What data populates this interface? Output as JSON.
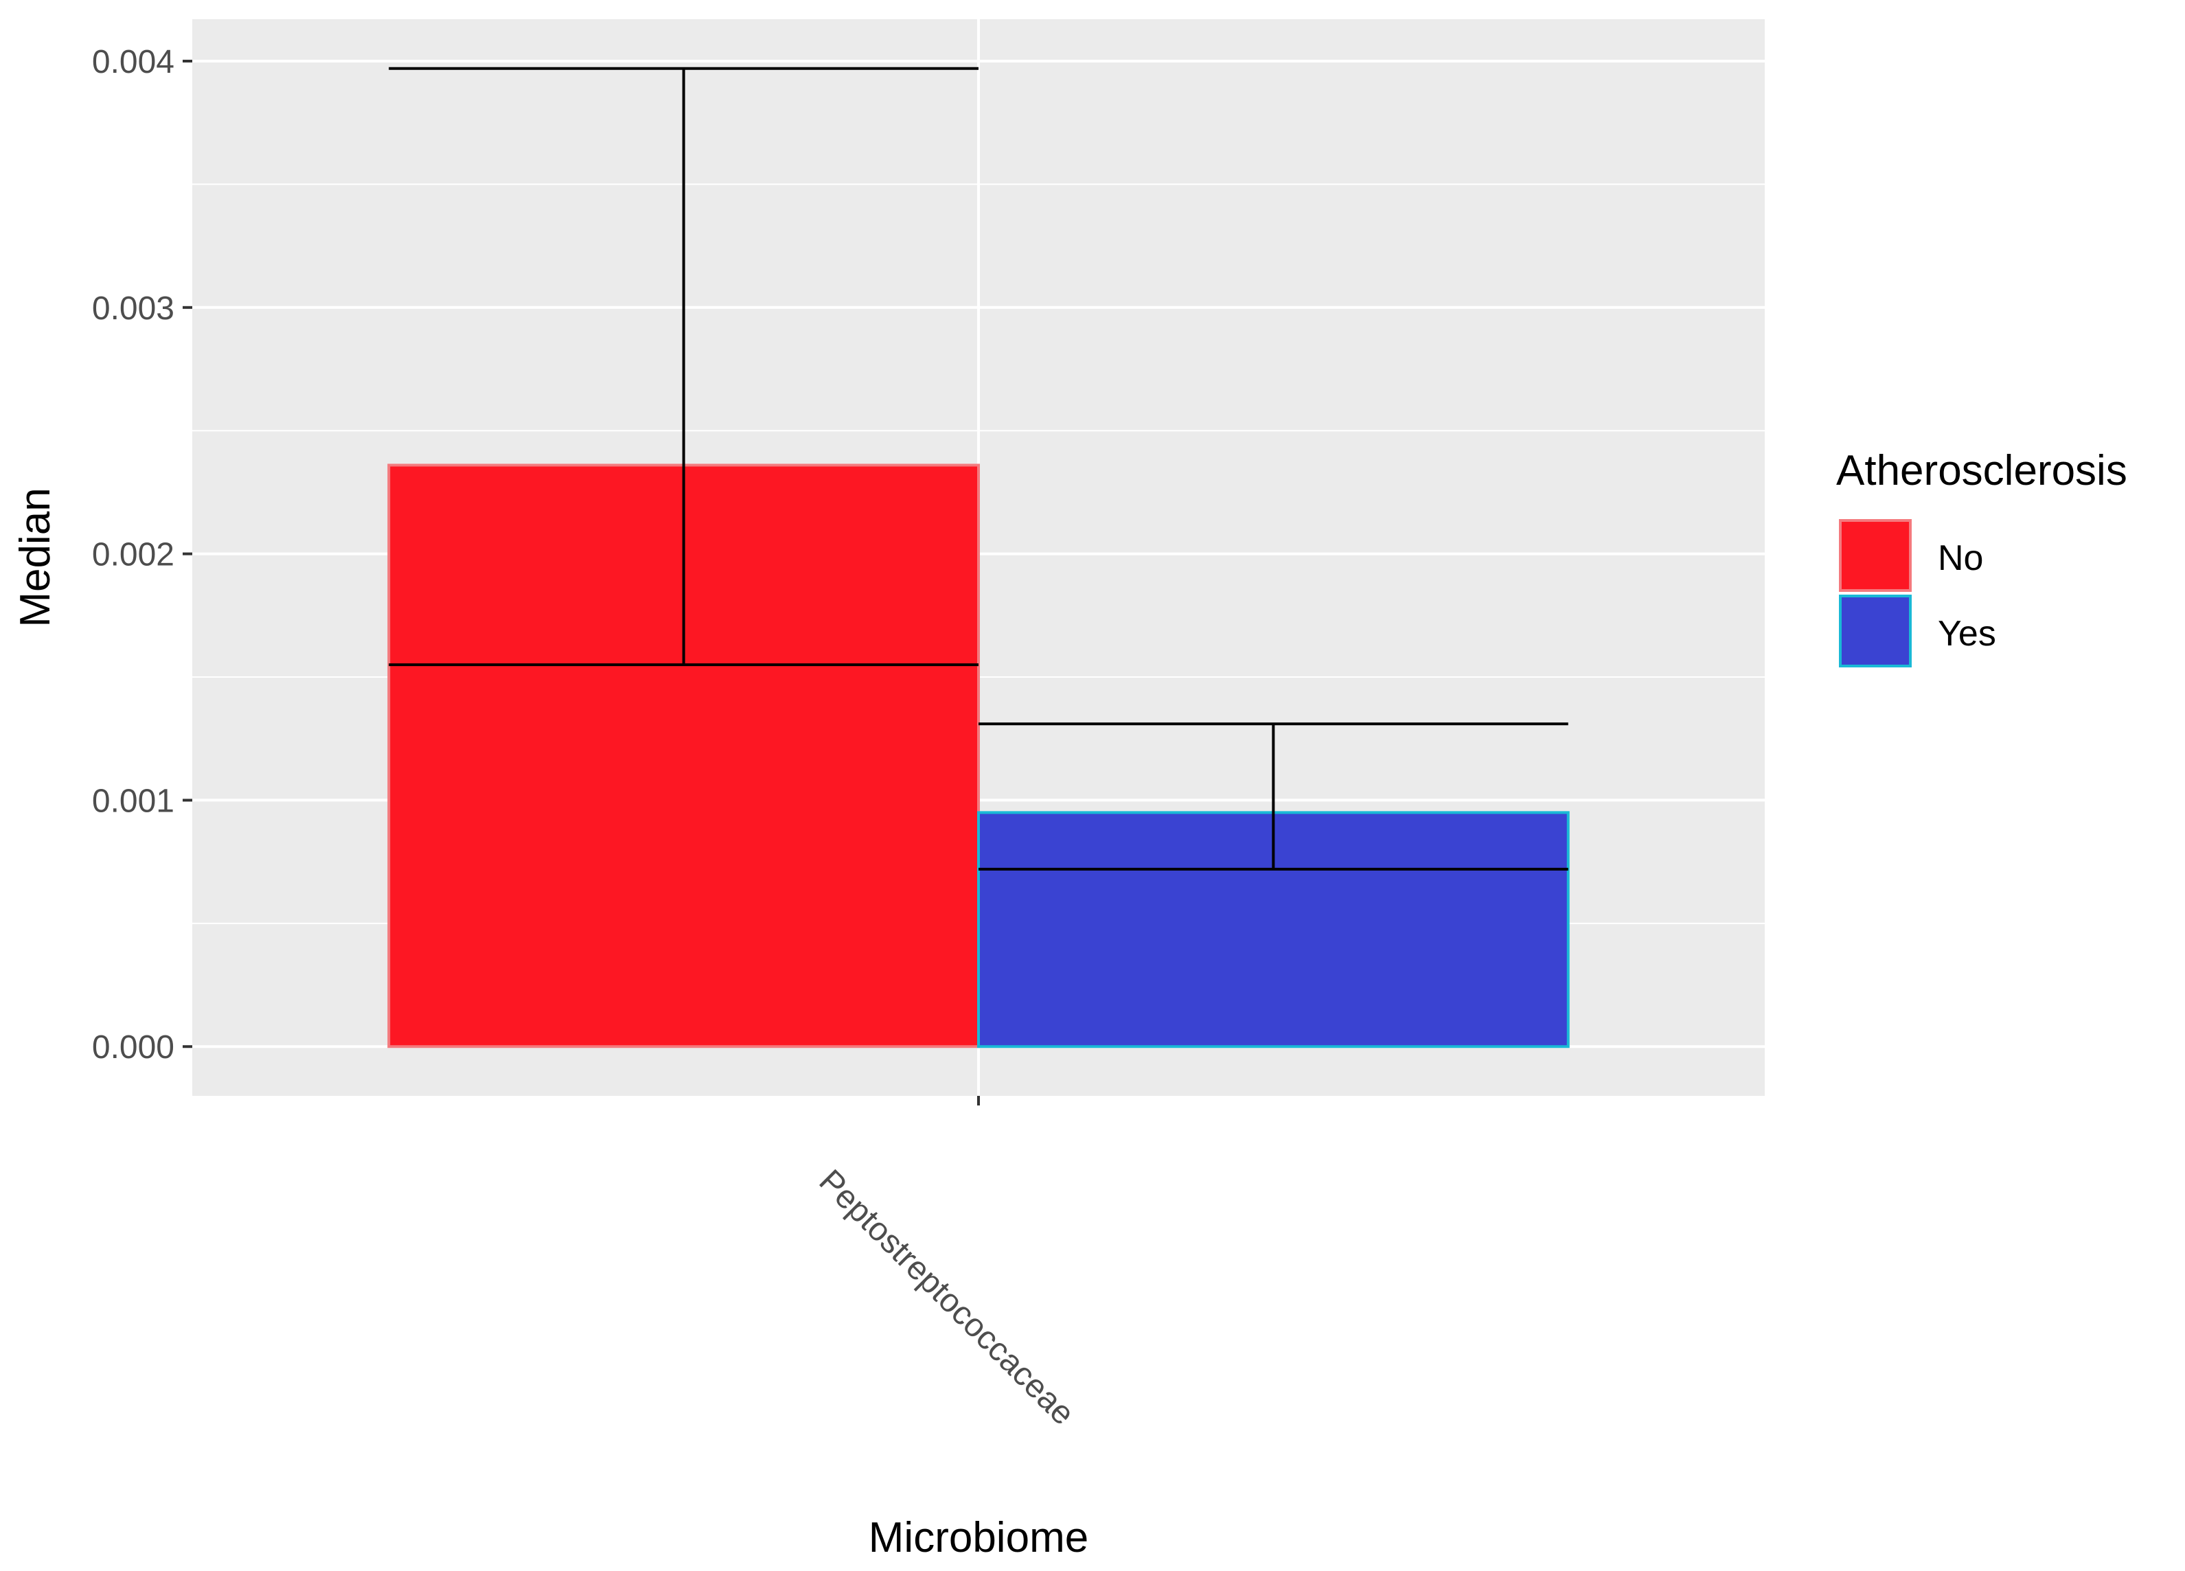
{
  "chart_data": {
    "type": "bar",
    "categories": [
      "Peptostreptococcaceae"
    ],
    "series": [
      {
        "name": "No",
        "color": "#fd1723",
        "border": "#f47a7e",
        "values": [
          0.00236
        ],
        "error_low": [
          0.00155
        ],
        "error_high": [
          0.00397
        ]
      },
      {
        "name": "Yes",
        "color": "#3a43d2",
        "border": "#1ab9d6",
        "values": [
          0.00095
        ],
        "error_low": [
          0.00072
        ],
        "error_high": [
          0.00131
        ]
      }
    ],
    "xlabel": "Microbiome",
    "ylabel": "Median",
    "ylim": [
      -0.0002,
      0.00417
    ],
    "yticks": [
      0.0,
      0.001,
      0.002,
      0.003,
      0.004
    ],
    "ytick_labels": [
      "0.000",
      "0.001",
      "0.002",
      "0.003",
      "0.004"
    ],
    "grid": true,
    "legend": {
      "title": "Atherosclerosis",
      "placement": "right",
      "entries": [
        "No",
        "Yes"
      ]
    },
    "panel_background": "#ebebeb",
    "grid_color": "#ffffff"
  }
}
